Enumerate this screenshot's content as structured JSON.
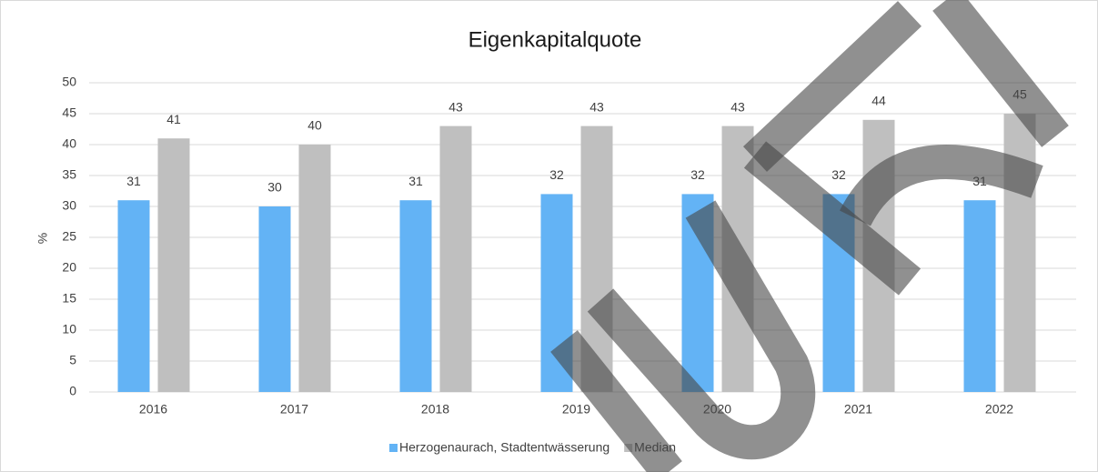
{
  "chart_data": {
    "type": "bar",
    "title": "Eigenkapitalquote",
    "y_label": "%",
    "categories": [
      "2016",
      "2017",
      "2018",
      "2019",
      "2020",
      "2021",
      "2022"
    ],
    "series": [
      {
        "name": "Herzogenaurach, Stadtentwässerung",
        "color": "#63b3f5",
        "values": [
          31,
          30,
          31,
          32,
          32,
          32,
          31
        ]
      },
      {
        "name": "Median",
        "color": "#bfbfbf",
        "values": [
          41,
          40,
          43,
          43,
          43,
          44,
          45
        ]
      }
    ],
    "ylim": [
      0,
      50
    ],
    "yticks": [
      0,
      5,
      10,
      15,
      20,
      25,
      30,
      35,
      40,
      45,
      50
    ],
    "grid": true,
    "legend": "bottom"
  }
}
